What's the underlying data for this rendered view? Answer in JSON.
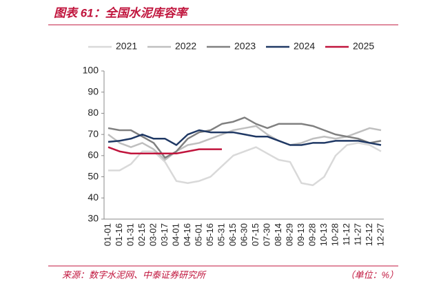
{
  "chart_data": {
    "type": "line",
    "title": "图表 61：全国水泥库容率",
    "source": "来源：数字水泥网、中泰证券研究所",
    "unit_note": "（单位：%）",
    "categories": [
      "01-01",
      "01-16",
      "01-31",
      "02-15",
      "03-02",
      "03-17",
      "04-01",
      "04-16",
      "05-01",
      "05-16",
      "05-31",
      "06-15",
      "06-30",
      "07-15",
      "07-30",
      "08-14",
      "08-29",
      "09-13",
      "09-28",
      "10-13",
      "10-28",
      "11-12",
      "11-27",
      "12-12",
      "12-27"
    ],
    "series": [
      {
        "name": "2021",
        "color": "#d9d9d9",
        "values": [
          53,
          53,
          56,
          62,
          62,
          57,
          48,
          47,
          48,
          50,
          55,
          60,
          62,
          64,
          61,
          58,
          57,
          47,
          46,
          50,
          60,
          65,
          66,
          65,
          62
        ]
      },
      {
        "name": "2022",
        "color": "#bfbfbf",
        "values": [
          70,
          66,
          64,
          66,
          63,
          58,
          62,
          65,
          66,
          68,
          70,
          72,
          73,
          74,
          70,
          67,
          65,
          66,
          68,
          69,
          68,
          69,
          71,
          73,
          72
        ]
      },
      {
        "name": "2023",
        "color": "#808080",
        "values": [
          73,
          72,
          72,
          69,
          66,
          59,
          62,
          68,
          71,
          72,
          75,
          76,
          78,
          75,
          73,
          75,
          75,
          75,
          74,
          72,
          70,
          69,
          68,
          66,
          67
        ]
      },
      {
        "name": "2024",
        "color": "#1f3864",
        "values": [
          66.5,
          67,
          68,
          70,
          68,
          68,
          65,
          70,
          72,
          71,
          71,
          71,
          70,
          69,
          69,
          67,
          65,
          65,
          66,
          66,
          67,
          67,
          67,
          66,
          65
        ]
      },
      {
        "name": "2025",
        "color": "#c0143c",
        "values": [
          64,
          62,
          61,
          61,
          61,
          61,
          61,
          62,
          63,
          63,
          63,
          null,
          null,
          null,
          null,
          null,
          null,
          null,
          null,
          null,
          null,
          null,
          null,
          null,
          null
        ]
      }
    ],
    "ylim": [
      30,
      100
    ],
    "yticks": [
      30,
      40,
      50,
      60,
      70,
      80,
      90,
      100
    ]
  }
}
